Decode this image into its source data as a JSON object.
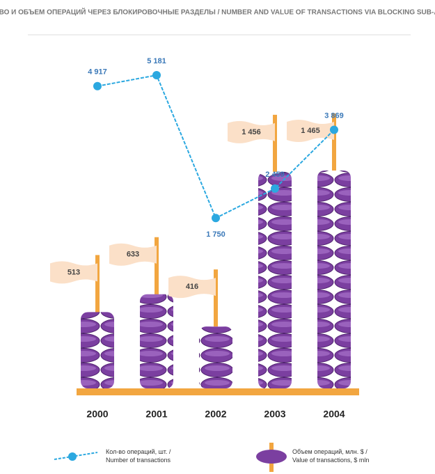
{
  "chart_data": {
    "type": "bar-line",
    "title": "КОЛИЧЕСТВО И ОБЪЕМ ОПЕРАЦИЙ ЧЕРЕЗ БЛОКИРОВОЧНЫЕ РАЗДЕЛЫ / NUMBER AND VALUE OF TRANSACTIONS VIA BLOCKING SUB-ACCOUNTS",
    "categories": [
      "2000",
      "2001",
      "2002",
      "2003",
      "2004"
    ],
    "series": [
      {
        "name": "Объем операций, млн. $ / Value of transactions, $ mln",
        "color": "#7b3fa0",
        "values": [
          513,
          633,
          416,
          1456,
          1465
        ],
        "value_labels": [
          "513",
          "633",
          "416",
          "1 456",
          "1 465"
        ]
      },
      {
        "name": "Кол-во операций, шт. / Number of transactions",
        "color": "#2ba8e0",
        "axis": "y2",
        "values": [
          4917,
          5181,
          1750,
          2459,
          3869
        ],
        "value_labels": [
          "4 917",
          "5 181",
          "1 750",
          "2 459",
          "3 869"
        ]
      }
    ]
  }
}
